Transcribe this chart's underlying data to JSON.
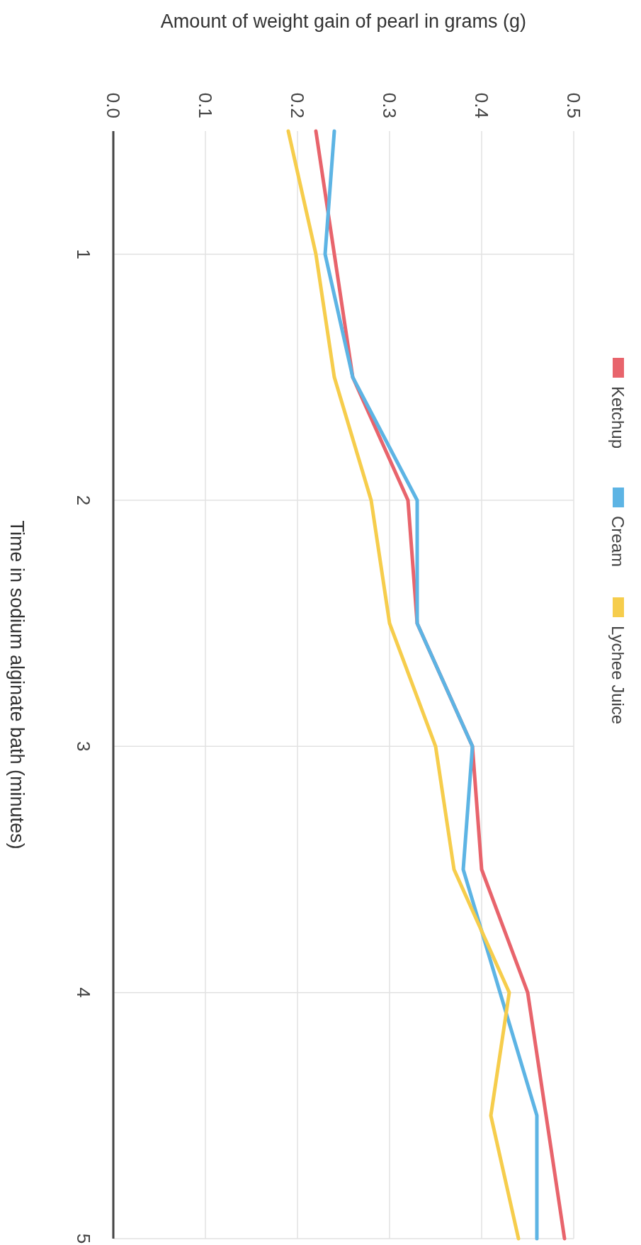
{
  "chart_data": {
    "type": "line",
    "xlabel": "Amount of weight gain of pearl in grams (g)",
    "ylabel": "Time in sodium alginate bath (minutes)",
    "series": [
      {
        "name": "Ketchup",
        "color": "#e8646c",
        "x": [
          0.22,
          0.24,
          0.26,
          0.32,
          0.33,
          0.39,
          0.4,
          0.45,
          0.47,
          0.49
        ],
        "values": [
          0.5,
          1,
          1.5,
          2,
          2.5,
          3,
          3.5,
          4,
          4.5,
          5
        ]
      },
      {
        "name": "Cream",
        "color": "#5db4e4",
        "x": [
          0.24,
          0.23,
          0.26,
          0.33,
          0.33,
          0.39,
          0.38,
          0.42,
          0.46,
          0.46
        ],
        "values": [
          0.5,
          1,
          1.5,
          2,
          2.5,
          3,
          3.5,
          4,
          4.5,
          5
        ]
      },
      {
        "name": "Lychee Juice",
        "color": "#f6cd4c",
        "x": [
          0.19,
          0.22,
          0.24,
          0.28,
          0.3,
          0.35,
          0.37,
          0.43,
          0.41,
          0.44
        ],
        "values": [
          0.5,
          1,
          1.5,
          2,
          2.5,
          3,
          3.5,
          4,
          4.5,
          5
        ]
      }
    ],
    "xlim": [
      0,
      0.5
    ],
    "xticks": [
      {
        "value": 0,
        "label": "0.0"
      },
      0.1,
      0.2,
      0.3,
      0.4,
      0.5
    ],
    "ylim": [
      5,
      0.5
    ],
    "yticks": [
      1,
      2,
      3,
      4,
      5
    ],
    "grid": true,
    "legend": "right",
    "marker": "none",
    "line_style": "solid"
  }
}
